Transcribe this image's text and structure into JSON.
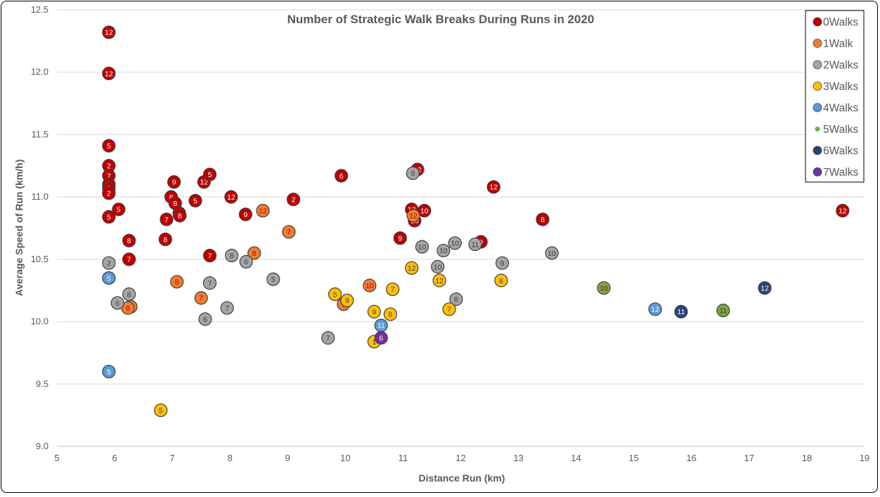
{
  "chart_data": {
    "type": "scatter",
    "title": "Number of Strategic Walk Breaks During Runs in 2020",
    "xlabel": "Distance Run (km)",
    "ylabel": "Average Speed of Run (km/h)",
    "xlim": [
      5,
      19
    ],
    "ylim": [
      9.0,
      12.5
    ],
    "xticks": [
      "5",
      "6",
      "7",
      "8",
      "9",
      "10",
      "11",
      "12",
      "13",
      "14",
      "15",
      "16",
      "17",
      "18",
      "19"
    ],
    "yticks": [
      "9.0",
      "9.5",
      "10.0",
      "10.5",
      "11.0",
      "11.5",
      "12.0",
      "12.5"
    ],
    "grid": "horizontal",
    "legend_position": "right",
    "point_labels": "month number",
    "series": [
      {
        "name": "0Walks",
        "color": "#c00000",
        "points": [
          {
            "x": 5.9,
            "y": 12.32,
            "label": "12"
          },
          {
            "x": 5.9,
            "y": 11.99,
            "label": "12"
          },
          {
            "x": 5.9,
            "y": 11.41,
            "label": "5"
          },
          {
            "x": 5.9,
            "y": 11.25,
            "label": "2"
          },
          {
            "x": 5.9,
            "y": 11.17,
            "label": "7"
          },
          {
            "x": 5.9,
            "y": 11.1,
            "label": "1"
          },
          {
            "x": 5.9,
            "y": 11.07,
            "label": "1"
          },
          {
            "x": 5.9,
            "y": 11.03,
            "label": "2"
          },
          {
            "x": 5.9,
            "y": 10.84,
            "label": "5"
          },
          {
            "x": 6.07,
            "y": 10.9,
            "label": "5"
          },
          {
            "x": 6.25,
            "y": 10.65,
            "label": "8"
          },
          {
            "x": 6.25,
            "y": 10.5,
            "label": "7"
          },
          {
            "x": 6.88,
            "y": 10.66,
            "label": "8"
          },
          {
            "x": 6.9,
            "y": 10.82,
            "label": "7"
          },
          {
            "x": 6.98,
            "y": 11.0,
            "label": "8"
          },
          {
            "x": 7.03,
            "y": 11.12,
            "label": "9"
          },
          {
            "x": 7.05,
            "y": 10.95,
            "label": "8"
          },
          {
            "x": 7.12,
            "y": 10.87,
            "label": "8"
          },
          {
            "x": 7.13,
            "y": 10.85,
            "label": "8"
          },
          {
            "x": 7.4,
            "y": 10.97,
            "label": "5"
          },
          {
            "x": 7.55,
            "y": 11.12,
            "label": "12"
          },
          {
            "x": 7.65,
            "y": 11.18,
            "label": "5"
          },
          {
            "x": 7.65,
            "y": 10.53,
            "label": "7"
          },
          {
            "x": 8.02,
            "y": 11.0,
            "label": "12"
          },
          {
            "x": 8.27,
            "y": 10.86,
            "label": "9"
          },
          {
            "x": 9.1,
            "y": 10.98,
            "label": "2"
          },
          {
            "x": 9.93,
            "y": 11.17,
            "label": "6"
          },
          {
            "x": 10.95,
            "y": 10.67,
            "label": "9"
          },
          {
            "x": 11.15,
            "y": 10.9,
            "label": "12"
          },
          {
            "x": 11.2,
            "y": 10.81,
            "label": "10"
          },
          {
            "x": 11.25,
            "y": 11.22,
            "label": "12"
          },
          {
            "x": 11.37,
            "y": 10.89,
            "label": "10"
          },
          {
            "x": 12.35,
            "y": 10.64,
            "label": "9"
          },
          {
            "x": 12.57,
            "y": 11.08,
            "label": "12"
          },
          {
            "x": 13.42,
            "y": 10.82,
            "label": "8"
          },
          {
            "x": 18.62,
            "y": 10.89,
            "label": "12"
          }
        ]
      },
      {
        "name": "1Walk",
        "color": "#ed7d31",
        "points": [
          {
            "x": 6.28,
            "y": 10.12,
            "label": "7"
          },
          {
            "x": 6.23,
            "y": 10.11,
            "label": "8"
          },
          {
            "x": 7.08,
            "y": 10.32,
            "label": "8"
          },
          {
            "x": 7.5,
            "y": 10.19,
            "label": "7"
          },
          {
            "x": 8.42,
            "y": 10.55,
            "label": "8"
          },
          {
            "x": 8.57,
            "y": 10.89,
            "label": "12"
          },
          {
            "x": 9.02,
            "y": 10.72,
            "label": "7"
          },
          {
            "x": 9.97,
            "y": 10.14,
            "label": "7"
          },
          {
            "x": 10.42,
            "y": 10.29,
            "label": "10"
          },
          {
            "x": 11.18,
            "y": 10.85,
            "label": "12"
          }
        ]
      },
      {
        "name": "2Walks",
        "color": "#a5a5a5",
        "points": [
          {
            "x": 5.9,
            "y": 10.47,
            "label": "2"
          },
          {
            "x": 6.05,
            "y": 10.15,
            "label": "6"
          },
          {
            "x": 6.25,
            "y": 10.22,
            "label": "8"
          },
          {
            "x": 7.57,
            "y": 10.02,
            "label": "6"
          },
          {
            "x": 7.65,
            "y": 10.31,
            "label": "7"
          },
          {
            "x": 7.95,
            "y": 10.11,
            "label": "7"
          },
          {
            "x": 8.03,
            "y": 10.53,
            "label": "8"
          },
          {
            "x": 8.28,
            "y": 10.48,
            "label": "6"
          },
          {
            "x": 8.75,
            "y": 10.34,
            "label": "5"
          },
          {
            "x": 9.7,
            "y": 9.87,
            "label": "7"
          },
          {
            "x": 11.17,
            "y": 11.19,
            "label": "8"
          },
          {
            "x": 11.33,
            "y": 10.6,
            "label": "10"
          },
          {
            "x": 11.6,
            "y": 10.44,
            "label": "10"
          },
          {
            "x": 11.7,
            "y": 10.57,
            "label": "10"
          },
          {
            "x": 11.9,
            "y": 10.63,
            "label": "10"
          },
          {
            "x": 11.92,
            "y": 10.18,
            "label": "8"
          },
          {
            "x": 12.25,
            "y": 10.62,
            "label": "11"
          },
          {
            "x": 12.72,
            "y": 10.47,
            "label": "9"
          },
          {
            "x": 13.58,
            "y": 10.55,
            "label": "10"
          }
        ]
      },
      {
        "name": "3Walks",
        "color": "#ffc000",
        "points": [
          {
            "x": 6.8,
            "y": 9.29,
            "label": "5"
          },
          {
            "x": 9.82,
            "y": 10.22,
            "label": "5"
          },
          {
            "x": 10.03,
            "y": 10.17,
            "label": "9"
          },
          {
            "x": 10.5,
            "y": 9.84,
            "label": "1"
          },
          {
            "x": 10.5,
            "y": 10.08,
            "label": "9"
          },
          {
            "x": 10.78,
            "y": 10.06,
            "label": "8"
          },
          {
            "x": 10.82,
            "y": 10.26,
            "label": "7"
          },
          {
            "x": 11.15,
            "y": 10.43,
            "label": "12"
          },
          {
            "x": 11.63,
            "y": 10.33,
            "label": "12"
          },
          {
            "x": 11.8,
            "y": 10.1,
            "label": "7"
          },
          {
            "x": 12.7,
            "y": 10.33,
            "label": "8"
          }
        ]
      },
      {
        "name": "4Walks",
        "color": "#5b9bd5",
        "points": [
          {
            "x": 5.9,
            "y": 10.35,
            "label": "5"
          },
          {
            "x": 5.9,
            "y": 9.6,
            "label": "5"
          },
          {
            "x": 10.62,
            "y": 9.97,
            "label": "11"
          },
          {
            "x": 15.37,
            "y": 10.1,
            "label": "12"
          }
        ]
      },
      {
        "name": "5Walks",
        "color": "#70ad47",
        "points": [
          {
            "x": 14.48,
            "y": 10.27,
            "label": "10"
          },
          {
            "x": 16.55,
            "y": 10.09,
            "label": "11"
          }
        ]
      },
      {
        "name": "6Walks",
        "color": "#264478",
        "points": [
          {
            "x": 15.82,
            "y": 10.08,
            "label": "11"
          },
          {
            "x": 17.27,
            "y": 10.27,
            "label": "12"
          }
        ]
      },
      {
        "name": "7Walks",
        "color": "#7030a0",
        "points": [
          {
            "x": 10.62,
            "y": 9.87,
            "label": "6"
          }
        ]
      }
    ]
  }
}
